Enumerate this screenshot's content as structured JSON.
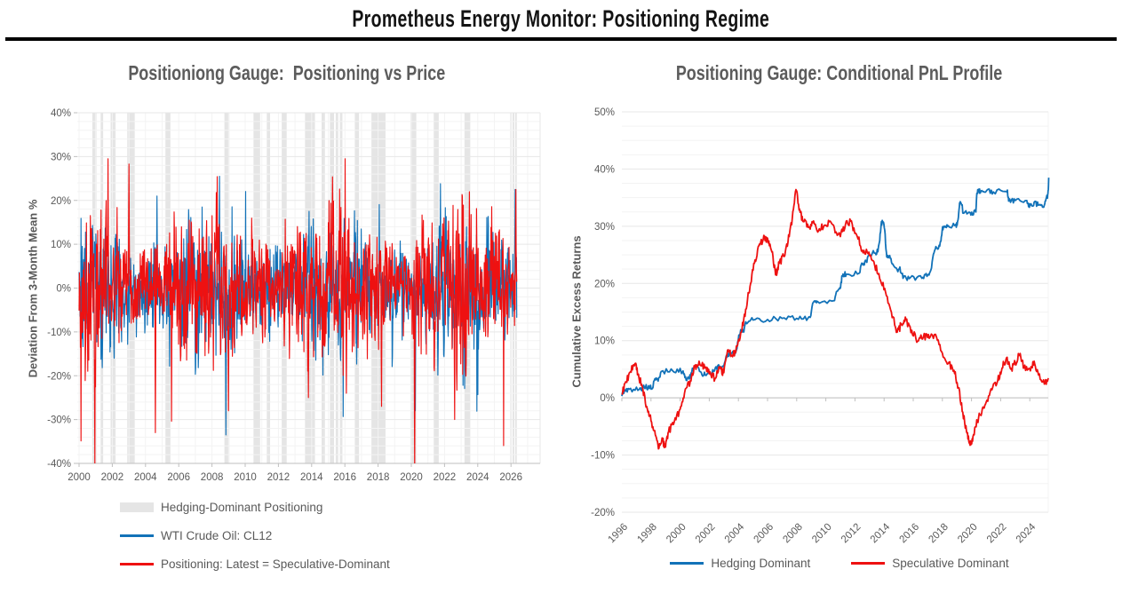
{
  "header": {
    "title": "Prometheus Energy Monitor: Positioning Regime"
  },
  "left_chart": {
    "title": "Positioniong Gauge:  Positioning vs Price",
    "y_axis_title": "Deviation From 3-Month Mean %",
    "legend": [
      {
        "label": "Hedging-Dominant Positioning",
        "swatch": "band"
      },
      {
        "label": "WTI Crude Oil: CL12",
        "swatch": "line-blue"
      },
      {
        "label": "Positioning: Latest = Speculative-Dominant",
        "swatch": "line-red"
      }
    ]
  },
  "right_chart": {
    "title": "Positioning Gauge: Conditional PnL Profile",
    "y_axis_title": "Cumulative Excess Returns",
    "legend": [
      {
        "label": "Hedging Dominant",
        "swatch": "line-blue"
      },
      {
        "label": "Speculative Dominant",
        "swatch": "line-red"
      }
    ]
  },
  "colors": {
    "blue": "#1272b8",
    "red": "#ee1111",
    "band": "#e5e5e5",
    "grid_minor": "#f3f3f3",
    "grid_major": "#e7e7e7",
    "axis": "#bfbfbf",
    "text": "#595959"
  },
  "chart_data": [
    {
      "id": "positioning_vs_price",
      "type": "line",
      "title": "Positioniong Gauge:  Positioning vs Price",
      "xlabel": "",
      "ylabel": "Deviation From 3-Month Mean %",
      "ylim": [
        -40,
        40
      ],
      "y_tick_labels": [
        "40%",
        "30%",
        "20%",
        "10%",
        "0%",
        "-10%",
        "-20%",
        "-30%",
        "-40%"
      ],
      "y_tick_values": [
        40,
        30,
        20,
        10,
        0,
        -10,
        -20,
        -30,
        -40
      ],
      "minor_y_step": 2,
      "x_range": [
        2000,
        2026.35
      ],
      "x_ticks": [
        2000,
        2002,
        2004,
        2006,
        2008,
        2010,
        2012,
        2014,
        2016,
        2018,
        2020,
        2022,
        2024,
        2026
      ],
      "grid": true,
      "legend_position": "bottom-left",
      "note": "Weekly mean-reversion noise, too dense to digitize point-by-point; series re-synthesized deterministically from the parameters below with the visually-read extremes pinned.",
      "bands": {
        "name": "Hedging-Dominant Positioning",
        "ranges": [
          [
            2000.8,
            2001.05
          ],
          [
            2001.3,
            2001.45
          ],
          [
            2001.9,
            2002.2
          ],
          [
            2002.9,
            2003.35
          ],
          [
            2005.2,
            2005.5
          ],
          [
            2008.75,
            2009.05
          ],
          [
            2010.5,
            2010.9
          ],
          [
            2011.3,
            2011.5
          ],
          [
            2012.2,
            2012.5
          ],
          [
            2013.6,
            2014.2
          ],
          [
            2014.6,
            2014.8
          ],
          [
            2015.1,
            2015.35
          ],
          [
            2015.45,
            2015.6
          ],
          [
            2015.7,
            2015.85
          ],
          [
            2016.6,
            2016.85
          ],
          [
            2017.6,
            2018.45
          ],
          [
            2019.95,
            2020.3
          ],
          [
            2021.35,
            2021.65
          ],
          [
            2023.2,
            2023.55
          ],
          [
            2025.95,
            2026.05
          ],
          [
            2026.1,
            2026.2
          ],
          [
            2026.25,
            2026.35
          ]
        ]
      },
      "series": [
        {
          "name": "WTI Crude Oil: CL12",
          "color_key": "blue",
          "style": "noise",
          "seed": 20,
          "amplitude": 6.0,
          "clip": [
            -34,
            26
          ],
          "points_n": 1360,
          "keypoints": [
            [
              2004.7,
              21
            ],
            [
              2008.45,
              25.5
            ],
            [
              2008.85,
              -33.5
            ],
            [
              2013.85,
              17.5
            ],
            [
              2020.25,
              -28
            ],
            [
              2021.75,
              23.8
            ],
            [
              2026.25,
              22.5
            ]
          ]
        },
        {
          "name": "Positioning: Latest = Speculative-Dominant",
          "color_key": "red",
          "style": "noise",
          "seed": 77,
          "amplitude": 7.0,
          "clip": [
            -42,
            29.5
          ],
          "points_n": 1360,
          "keypoints": [
            [
              2000.95,
              -41
            ],
            [
              2001.75,
              29.5
            ],
            [
              2003.0,
              28.3
            ],
            [
              2004.6,
              -33
            ],
            [
              2009.0,
              -28
            ],
            [
              2013.8,
              -25
            ],
            [
              2016.1,
              -24
            ],
            [
              2018.2,
              -27
            ],
            [
              2020.2,
              -42
            ],
            [
              2022.6,
              -30
            ],
            [
              2023.5,
              22
            ],
            [
              2026.3,
              22.5
            ]
          ]
        }
      ]
    },
    {
      "id": "conditional_pnl",
      "type": "line",
      "title": "Positioning Gauge: Conditional PnL Profile",
      "xlabel": "",
      "ylabel": "Cumulative Excess Returns",
      "ylim": [
        -20,
        50
      ],
      "y_tick_labels": [
        "50%",
        "40%",
        "30%",
        "20%",
        "10%",
        "0%",
        "-10%",
        "-20%"
      ],
      "y_tick_values": [
        50,
        40,
        30,
        20,
        10,
        0,
        -10,
        -20
      ],
      "minor_y_step": 2.5,
      "x_range": [
        1996,
        2025.4
      ],
      "x_ticks": [
        1996,
        1998,
        2000,
        2002,
        2004,
        2006,
        2008,
        2010,
        2012,
        2014,
        2016,
        2018,
        2020,
        2022,
        2024
      ],
      "grid": true,
      "legend_position": "bottom-center",
      "series": [
        {
          "name": "Hedging Dominant",
          "color_key": "blue",
          "style": "points",
          "jitter": 0.45,
          "seed": 5,
          "shape": "step",
          "points": [
            [
              1996.0,
              0.3
            ],
            [
              1996.2,
              1.2
            ],
            [
              1996.5,
              1.5
            ],
            [
              1997.2,
              1.5
            ],
            [
              1997.5,
              2.2
            ],
            [
              1997.8,
              1.8
            ],
            [
              1998.1,
              1.6
            ],
            [
              1998.4,
              3.2
            ],
            [
              1998.7,
              4.6
            ],
            [
              1999.5,
              4.7
            ],
            [
              2000.2,
              4.7
            ],
            [
              2000.5,
              3.4
            ],
            [
              2000.8,
              4.5
            ],
            [
              2001.1,
              5.3
            ],
            [
              2001.5,
              4.0
            ],
            [
              2001.9,
              4.3
            ],
            [
              2002.3,
              4.6
            ],
            [
              2002.7,
              5.4
            ],
            [
              2003.1,
              6.5
            ],
            [
              2003.5,
              7.8
            ],
            [
              2003.9,
              8.6
            ],
            [
              2004.2,
              11.5
            ],
            [
              2004.5,
              13.3
            ],
            [
              2005.0,
              13.6
            ],
            [
              2006.0,
              13.7
            ],
            [
              2007.0,
              13.9
            ],
            [
              2008.0,
              13.9
            ],
            [
              2008.8,
              14.0
            ],
            [
              2009.1,
              16.5
            ],
            [
              2009.4,
              16.9
            ],
            [
              2010.6,
              17.0
            ],
            [
              2010.9,
              19.0
            ],
            [
              2011.1,
              21.3
            ],
            [
              2011.4,
              21.6
            ],
            [
              2012.3,
              21.8
            ],
            [
              2012.6,
              23.5
            ],
            [
              2012.9,
              24.8
            ],
            [
              2013.4,
              25.3
            ],
            [
              2013.7,
              27.5
            ],
            [
              2013.9,
              30.8
            ],
            [
              2014.1,
              27.0
            ],
            [
              2014.3,
              24.5
            ],
            [
              2014.6,
              23.4
            ],
            [
              2015.0,
              22.5
            ],
            [
              2015.3,
              20.9
            ],
            [
              2015.8,
              21.0
            ],
            [
              2016.6,
              20.9
            ],
            [
              2017.0,
              21.5
            ],
            [
              2017.3,
              23.8
            ],
            [
              2017.6,
              26.2
            ],
            [
              2017.9,
              27.4
            ],
            [
              2018.1,
              29.8
            ],
            [
              2018.4,
              30.1
            ],
            [
              2018.9,
              30.2
            ],
            [
              2019.1,
              31.5
            ],
            [
              2019.25,
              34.2
            ],
            [
              2019.4,
              32.3
            ],
            [
              2019.9,
              32.4
            ],
            [
              2020.3,
              32.5
            ],
            [
              2020.45,
              36.3
            ],
            [
              2020.6,
              35.8
            ],
            [
              2021.0,
              36.1
            ],
            [
              2021.5,
              36.0
            ],
            [
              2022.4,
              36.1
            ],
            [
              2022.55,
              34.4
            ],
            [
              2023.0,
              34.5
            ],
            [
              2023.8,
              34.5
            ],
            [
              2024.0,
              33.6
            ],
            [
              2024.3,
              34.2
            ],
            [
              2024.7,
              33.8
            ],
            [
              2025.0,
              33.7
            ],
            [
              2025.2,
              35.0
            ],
            [
              2025.3,
              38.5
            ]
          ]
        },
        {
          "name": "Speculative Dominant",
          "color_key": "red",
          "style": "points",
          "jitter": 0.7,
          "seed": 9,
          "shape": "linear",
          "points": [
            [
              1996.0,
              0.8
            ],
            [
              1996.3,
              2.8
            ],
            [
              1996.6,
              4.6
            ],
            [
              1996.9,
              6.0
            ],
            [
              1997.1,
              4.2
            ],
            [
              1997.4,
              2.0
            ],
            [
              1997.7,
              -1.5
            ],
            [
              1998.0,
              -4.0
            ],
            [
              1998.3,
              -6.5
            ],
            [
              1998.55,
              -8.8
            ],
            [
              1998.8,
              -7.5
            ],
            [
              1999.0,
              -8.6
            ],
            [
              1999.2,
              -6.0
            ],
            [
              1999.6,
              -4.2
            ],
            [
              2000.0,
              -2.0
            ],
            [
              2000.3,
              0.8
            ],
            [
              2000.7,
              3.0
            ],
            [
              2001.0,
              5.4
            ],
            [
              2001.3,
              6.4
            ],
            [
              2001.7,
              5.2
            ],
            [
              2002.0,
              4.2
            ],
            [
              2002.4,
              3.4
            ],
            [
              2002.7,
              5.2
            ],
            [
              2003.0,
              4.4
            ],
            [
              2003.3,
              8.4
            ],
            [
              2003.6,
              7.2
            ],
            [
              2003.9,
              9.0
            ],
            [
              2004.2,
              11.5
            ],
            [
              2004.5,
              15.5
            ],
            [
              2004.8,
              19.5
            ],
            [
              2005.1,
              23.5
            ],
            [
              2005.4,
              26.6
            ],
            [
              2005.7,
              27.7
            ],
            [
              2006.0,
              27.9
            ],
            [
              2006.3,
              25.5
            ],
            [
              2006.55,
              21.5
            ],
            [
              2006.8,
              23.5
            ],
            [
              2007.1,
              24.8
            ],
            [
              2007.4,
              27.2
            ],
            [
              2007.7,
              31.5
            ],
            [
              2007.95,
              36.4
            ],
            [
              2008.2,
              33.0
            ],
            [
              2008.45,
              30.8
            ],
            [
              2008.8,
              29.8
            ],
            [
              2009.1,
              30.6
            ],
            [
              2009.5,
              29.2
            ],
            [
              2009.9,
              30.2
            ],
            [
              2010.3,
              30.9
            ],
            [
              2010.7,
              29.0
            ],
            [
              2011.0,
              28.2
            ],
            [
              2011.35,
              30.3
            ],
            [
              2011.7,
              30.9
            ],
            [
              2012.1,
              28.6
            ],
            [
              2012.5,
              25.8
            ],
            [
              2012.9,
              25.2
            ],
            [
              2013.3,
              23.8
            ],
            [
              2013.7,
              20.8
            ],
            [
              2014.1,
              18.5
            ],
            [
              2014.5,
              15.0
            ],
            [
              2014.9,
              11.5
            ],
            [
              2015.2,
              12.8
            ],
            [
              2015.5,
              13.6
            ],
            [
              2015.9,
              11.8
            ],
            [
              2016.3,
              9.9
            ],
            [
              2016.7,
              10.7
            ],
            [
              2017.1,
              10.4
            ],
            [
              2017.6,
              10.6
            ],
            [
              2018.0,
              7.8
            ],
            [
              2018.4,
              6.0
            ],
            [
              2018.8,
              4.8
            ],
            [
              2019.1,
              1.8
            ],
            [
              2019.4,
              -2.5
            ],
            [
              2019.7,
              -6.2
            ],
            [
              2019.9,
              -8.3
            ],
            [
              2020.1,
              -6.8
            ],
            [
              2020.4,
              -4.0
            ],
            [
              2020.7,
              -2.6
            ],
            [
              2021.0,
              -0.8
            ],
            [
              2021.4,
              1.4
            ],
            [
              2021.8,
              3.0
            ],
            [
              2022.1,
              5.2
            ],
            [
              2022.4,
              7.0
            ],
            [
              2022.7,
              5.0
            ],
            [
              2023.0,
              6.2
            ],
            [
              2023.3,
              7.4
            ],
            [
              2023.6,
              5.2
            ],
            [
              2024.0,
              5.0
            ],
            [
              2024.3,
              6.4
            ],
            [
              2024.6,
              4.0
            ],
            [
              2025.0,
              2.4
            ],
            [
              2025.3,
              3.4
            ]
          ]
        }
      ]
    }
  ]
}
